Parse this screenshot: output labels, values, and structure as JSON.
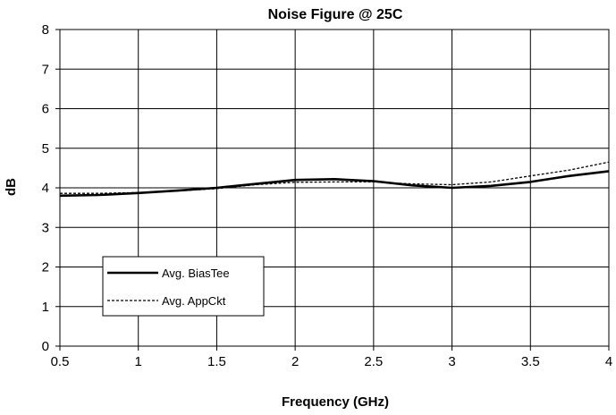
{
  "chart_data": {
    "type": "line",
    "title": "Noise Figure @ 25C",
    "xlabel": "Frequency (GHz)",
    "ylabel": "dB",
    "xlim": [
      0.5,
      4
    ],
    "ylim": [
      0,
      8
    ],
    "xticks": [
      "0.5",
      "1",
      "1.5",
      "2",
      "2.5",
      "3",
      "3.5",
      "4"
    ],
    "yticks": [
      "0",
      "1",
      "2",
      "3",
      "4",
      "5",
      "6",
      "7",
      "8"
    ],
    "grid": true,
    "legend_position": "lower-left",
    "series": [
      {
        "name": "Avg. BiasTee",
        "style": "solid",
        "color": "#000000",
        "x": [
          0.5,
          0.75,
          1.0,
          1.25,
          1.5,
          1.75,
          2.0,
          2.25,
          2.5,
          2.75,
          3.0,
          3.25,
          3.5,
          3.75,
          4.0
        ],
        "y": [
          3.8,
          3.82,
          3.87,
          3.93,
          4.0,
          4.1,
          4.2,
          4.22,
          4.17,
          4.06,
          4.0,
          4.05,
          4.15,
          4.3,
          4.42
        ]
      },
      {
        "name": "Avg. AppCkt",
        "style": "dotted",
        "color": "#000000",
        "x": [
          0.5,
          0.75,
          1.0,
          1.25,
          1.5,
          1.75,
          2.0,
          2.25,
          2.5,
          2.75,
          3.0,
          3.25,
          3.5,
          3.75,
          4.0
        ],
        "y": [
          3.86,
          3.86,
          3.88,
          3.92,
          3.98,
          4.08,
          4.14,
          4.15,
          4.15,
          4.1,
          4.08,
          4.15,
          4.3,
          4.45,
          4.65
        ]
      }
    ]
  }
}
